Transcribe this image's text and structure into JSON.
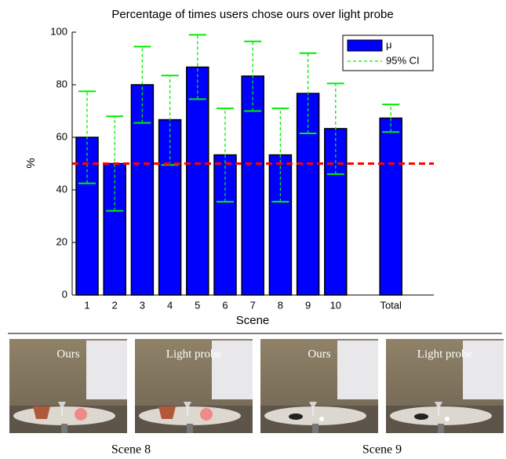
{
  "chart_data": {
    "type": "bar",
    "title": "Percentage of times users chose ours over light probe",
    "x_label": "Scene",
    "y_label": "%",
    "categories": [
      "1",
      "2",
      "3",
      "4",
      "5",
      "6",
      "7",
      "8",
      "9",
      "10",
      null,
      "Total"
    ],
    "series": [
      {
        "name": "μ",
        "color": "#0000ff",
        "values": [
          60,
          50,
          80,
          66.7,
          86.7,
          53.3,
          83.3,
          53.3,
          76.7,
          63.3,
          null,
          67.3
        ],
        "ci_name": "95% CI",
        "ci_color": "#00ee00",
        "ci_low": [
          42.5,
          32,
          65.5,
          49.5,
          74.5,
          35.5,
          70,
          35.5,
          61.5,
          46,
          null,
          62
        ],
        "ci_high": [
          77.5,
          68,
          94.5,
          83.5,
          99,
          71,
          96.5,
          71,
          92,
          80.5,
          null,
          72.5
        ]
      }
    ],
    "reference_line": {
      "value": 50,
      "color": "#ff0000"
    },
    "ylim": [
      0,
      100
    ],
    "yticks": [
      0,
      20,
      40,
      60,
      80,
      100
    ],
    "legend": "upper right"
  },
  "panels": [
    {
      "caption": "Scene 8",
      "images": [
        "Ours",
        "Light probe"
      ]
    },
    {
      "caption": "Scene 9",
      "images": [
        "Ours",
        "Light probe"
      ]
    }
  ]
}
